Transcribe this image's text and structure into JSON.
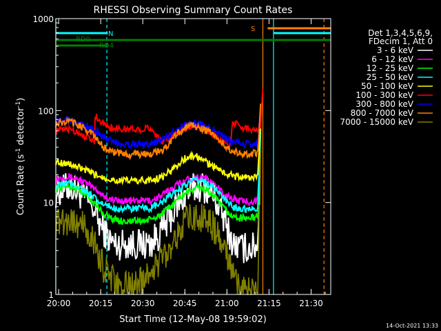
{
  "chart_data": {
    "type": "line",
    "title": "RHESSI Observing Summary Count Rates",
    "xlabel": "Start Time (12-May-08 19:59:02)",
    "ylabel_main": "Count Rate (s",
    "ylabel_sup1": "-1",
    "ylabel_mid": " detector",
    "ylabel_sup2": "-1",
    "ylabel_end": ")",
    "yscale": "log",
    "ylim": [
      1,
      1000
    ],
    "xlim_minutes": [
      0,
      98
    ],
    "x_tick_minutes": [
      1,
      16,
      31,
      46,
      61,
      76,
      91
    ],
    "x_tick_labels": [
      "20:00",
      "20:15",
      "20:30",
      "20:45",
      "21:00",
      "21:15",
      "21:30"
    ],
    "y_tick_values": [
      1,
      10,
      100,
      1000
    ],
    "y_tick_labels": [
      "1",
      "10",
      "100",
      "1000"
    ],
    "legend_header": [
      "Det 1,3,4,5,6,9,",
      "FDecim 1, Att 0"
    ],
    "legend_position": "right",
    "timestamp": "14-Oct-2021 13:33",
    "flags": {
      "N_label": "N",
      "S_label": "S",
      "RD0_label": "RD0",
      "RD4_label": "RD4",
      "N_color": "#00ffff",
      "S_color": "#ff8000",
      "RD_color": "#008000",
      "N_segments": [
        [
          0,
          18.5
        ],
        [
          77.5,
          98
        ]
      ],
      "S_segments": [
        [
          75.5,
          98
        ]
      ],
      "RD0_segments": [
        [
          0,
          38.5
        ],
        [
          38.5,
          63.5
        ],
        [
          63.5,
          98
        ]
      ],
      "RD4_segments": [
        [
          0,
          18.5
        ]
      ]
    },
    "vlines": [
      {
        "minute": 0,
        "color": "#00ffff",
        "dash": false
      },
      {
        "minute": 18.2,
        "color": "#00ffff",
        "dash": true
      },
      {
        "minute": 73.8,
        "color": "#ff8000",
        "dash": false
      },
      {
        "minute": 77.6,
        "color": "#00ffff",
        "dash": false
      },
      {
        "minute": 95.6,
        "color": "#ff8000",
        "dash": true
      }
    ],
    "series": [
      {
        "name": "3 - 6 keV",
        "color": "#ffffff",
        "x": [
          0,
          3,
          5,
          8,
          11,
          14,
          15.5,
          17,
          19,
          21,
          23,
          25,
          28,
          31,
          34,
          38,
          41,
          43,
          46,
          49,
          51,
          52,
          54,
          56,
          58,
          60,
          62,
          63,
          65,
          66,
          68,
          70,
          72,
          73
        ],
        "y": [
          13,
          14,
          15,
          13,
          11,
          8,
          6,
          5,
          4,
          3.5,
          3.5,
          3.6,
          3.5,
          3.5,
          3.6,
          5,
          7,
          9,
          12,
          14,
          15,
          15,
          14,
          12,
          9,
          6.5,
          4.5,
          3.5,
          3.3,
          3.2,
          3.2,
          3.2,
          3.5,
          50
        ]
      },
      {
        "name": "6 - 12 keV",
        "color": "#ff00ff",
        "x": [
          0,
          3,
          5,
          8,
          11,
          14,
          15.5,
          17,
          19,
          21,
          23,
          25,
          28,
          31,
          34,
          38,
          41,
          43,
          46,
          49,
          51,
          52,
          54,
          56,
          58,
          60,
          62,
          63,
          65,
          66,
          68,
          70,
          72,
          73
        ],
        "y": [
          18,
          19,
          19,
          18,
          16,
          14,
          13,
          12,
          11,
          10.5,
          10.5,
          10.5,
          10.5,
          10.5,
          10.5,
          12,
          14,
          15.5,
          17.5,
          18.5,
          19,
          19,
          18,
          16,
          14,
          12.5,
          11.5,
          11,
          10.5,
          10.3,
          10.3,
          10.3,
          10.5,
          60
        ]
      },
      {
        "name": "12 - 25 keV",
        "color": "#00ff00",
        "x": [
          0,
          3,
          5,
          8,
          11,
          14,
          15.5,
          17,
          19,
          21,
          23,
          25,
          28,
          31,
          34,
          38,
          41,
          43,
          46,
          49,
          51,
          52,
          54,
          56,
          58,
          60,
          62,
          63,
          65,
          66,
          68,
          70,
          72,
          73
        ],
        "y": [
          14,
          15,
          15,
          14,
          12,
          9.5,
          8.5,
          7.5,
          7,
          6.5,
          6.3,
          6.3,
          6.3,
          6.3,
          6.5,
          7.5,
          9,
          10.5,
          12.5,
          14,
          14.5,
          14.5,
          13.5,
          12,
          10,
          8.5,
          7.5,
          7,
          6.8,
          6.8,
          6.8,
          6.8,
          7,
          55
        ]
      },
      {
        "name": "25 - 50 keV",
        "color": "#00ffff",
        "x": [
          0,
          3,
          5,
          8,
          11,
          14,
          15.5,
          17,
          19,
          21,
          23,
          25,
          28,
          31,
          34,
          38,
          41,
          43,
          46,
          49,
          51,
          52,
          54,
          56,
          58,
          60,
          62,
          63,
          65,
          66,
          68,
          70,
          72,
          73
        ],
        "y": [
          15,
          16,
          16,
          15,
          13,
          11,
          10,
          9.5,
          9,
          8.7,
          8.6,
          8.6,
          8.6,
          8.6,
          8.7,
          10,
          12,
          13.5,
          15.5,
          17,
          17.5,
          17.5,
          16.5,
          15,
          13,
          11,
          9.5,
          9,
          8.7,
          8.6,
          8.6,
          8.6,
          8.8,
          62
        ]
      },
      {
        "name": "50 - 100 keV",
        "color": "#ffff00",
        "x": [
          0,
          3,
          5,
          8,
          11,
          14,
          15.5,
          17,
          19,
          21,
          23,
          25,
          28,
          31,
          34,
          38,
          41,
          43,
          46,
          49,
          51,
          52,
          54,
          56,
          58,
          60,
          62,
          63,
          65,
          66,
          68,
          70,
          72,
          73
        ],
        "y": [
          28,
          27,
          26,
          24,
          22,
          20,
          19.5,
          19,
          18,
          17.5,
          17.3,
          17.3,
          17.3,
          17.3,
          17.5,
          19,
          22,
          25,
          30,
          32,
          31,
          29,
          27,
          25,
          23,
          21,
          20,
          19.5,
          19,
          18.8,
          18.8,
          18.8,
          19,
          70
        ]
      },
      {
        "name": "100 - 300 keV",
        "color": "#ff0000",
        "x": [
          0,
          3,
          5,
          8,
          11,
          13.8,
          14,
          15.5,
          17,
          19,
          21,
          23,
          25,
          28,
          31,
          34,
          38,
          41,
          43,
          46,
          49,
          51,
          52,
          54,
          56,
          58,
          60,
          62,
          63,
          65,
          66,
          68,
          70,
          72,
          73,
          73.8
        ],
        "y": [
          60,
          62,
          63,
          58,
          52,
          45,
          88,
          80,
          72,
          66,
          64,
          63,
          63,
          63,
          63,
          64,
          45,
          52,
          58,
          65,
          68,
          67,
          66,
          62,
          56,
          50,
          45,
          40,
          75,
          70,
          66,
          64,
          63,
          63,
          70,
          175
        ]
      },
      {
        "name": "300 - 800 keV",
        "color": "#0000ff",
        "x": [
          0,
          3,
          5,
          8,
          11,
          14,
          15.5,
          17,
          19,
          21,
          23,
          25,
          28,
          31,
          34,
          38,
          41,
          43,
          46,
          49,
          51,
          52,
          54,
          56,
          58,
          60,
          62,
          63,
          65,
          66,
          68,
          70,
          72,
          73
        ],
        "y": [
          75,
          78,
          78,
          74,
          68,
          60,
          56,
          52,
          48,
          45,
          44,
          43,
          43,
          43,
          44,
          48,
          55,
          62,
          70,
          73,
          72,
          70,
          66,
          61,
          56,
          51,
          47,
          45,
          44,
          43,
          43,
          43,
          44,
          120
        ]
      },
      {
        "name": "800 - 7000 keV",
        "color": "#ff8000",
        "x": [
          0,
          3,
          5,
          8,
          11,
          14,
          15.5,
          17,
          19,
          21,
          23,
          25,
          28,
          31,
          34,
          38,
          41,
          43,
          46,
          49,
          51,
          52,
          54,
          56,
          58,
          60,
          62,
          63,
          65,
          66,
          68,
          70,
          72,
          73
        ],
        "y": [
          72,
          75,
          76,
          70,
          62,
          52,
          45,
          40,
          37,
          35,
          34,
          33.5,
          33.5,
          33.5,
          34,
          37,
          45,
          55,
          65,
          68,
          66,
          64,
          60,
          55,
          48,
          42,
          38,
          36,
          35,
          34,
          34,
          34,
          35,
          110
        ]
      },
      {
        "name": "7000 - 15000 keV",
        "color": "#808000",
        "x": [
          0,
          3,
          5,
          8,
          11,
          14,
          15.5,
          17,
          19,
          21,
          23,
          25,
          28,
          31,
          34,
          38,
          41,
          43,
          46,
          49,
          51,
          52,
          54,
          56,
          58,
          60,
          62,
          63,
          65,
          66,
          68,
          70,
          72,
          73
        ],
        "y": [
          6,
          6.5,
          6.5,
          6,
          5,
          3.5,
          2.5,
          2,
          1.6,
          1.3,
          1.2,
          1.2,
          1.2,
          1.5,
          1.8,
          2.5,
          3.5,
          4.5,
          6,
          7,
          7.2,
          7,
          6.5,
          5.5,
          4.2,
          3,
          2.2,
          1.6,
          1.2,
          1.1,
          1.1,
          1.1,
          1.3,
          30
        ]
      }
    ]
  }
}
